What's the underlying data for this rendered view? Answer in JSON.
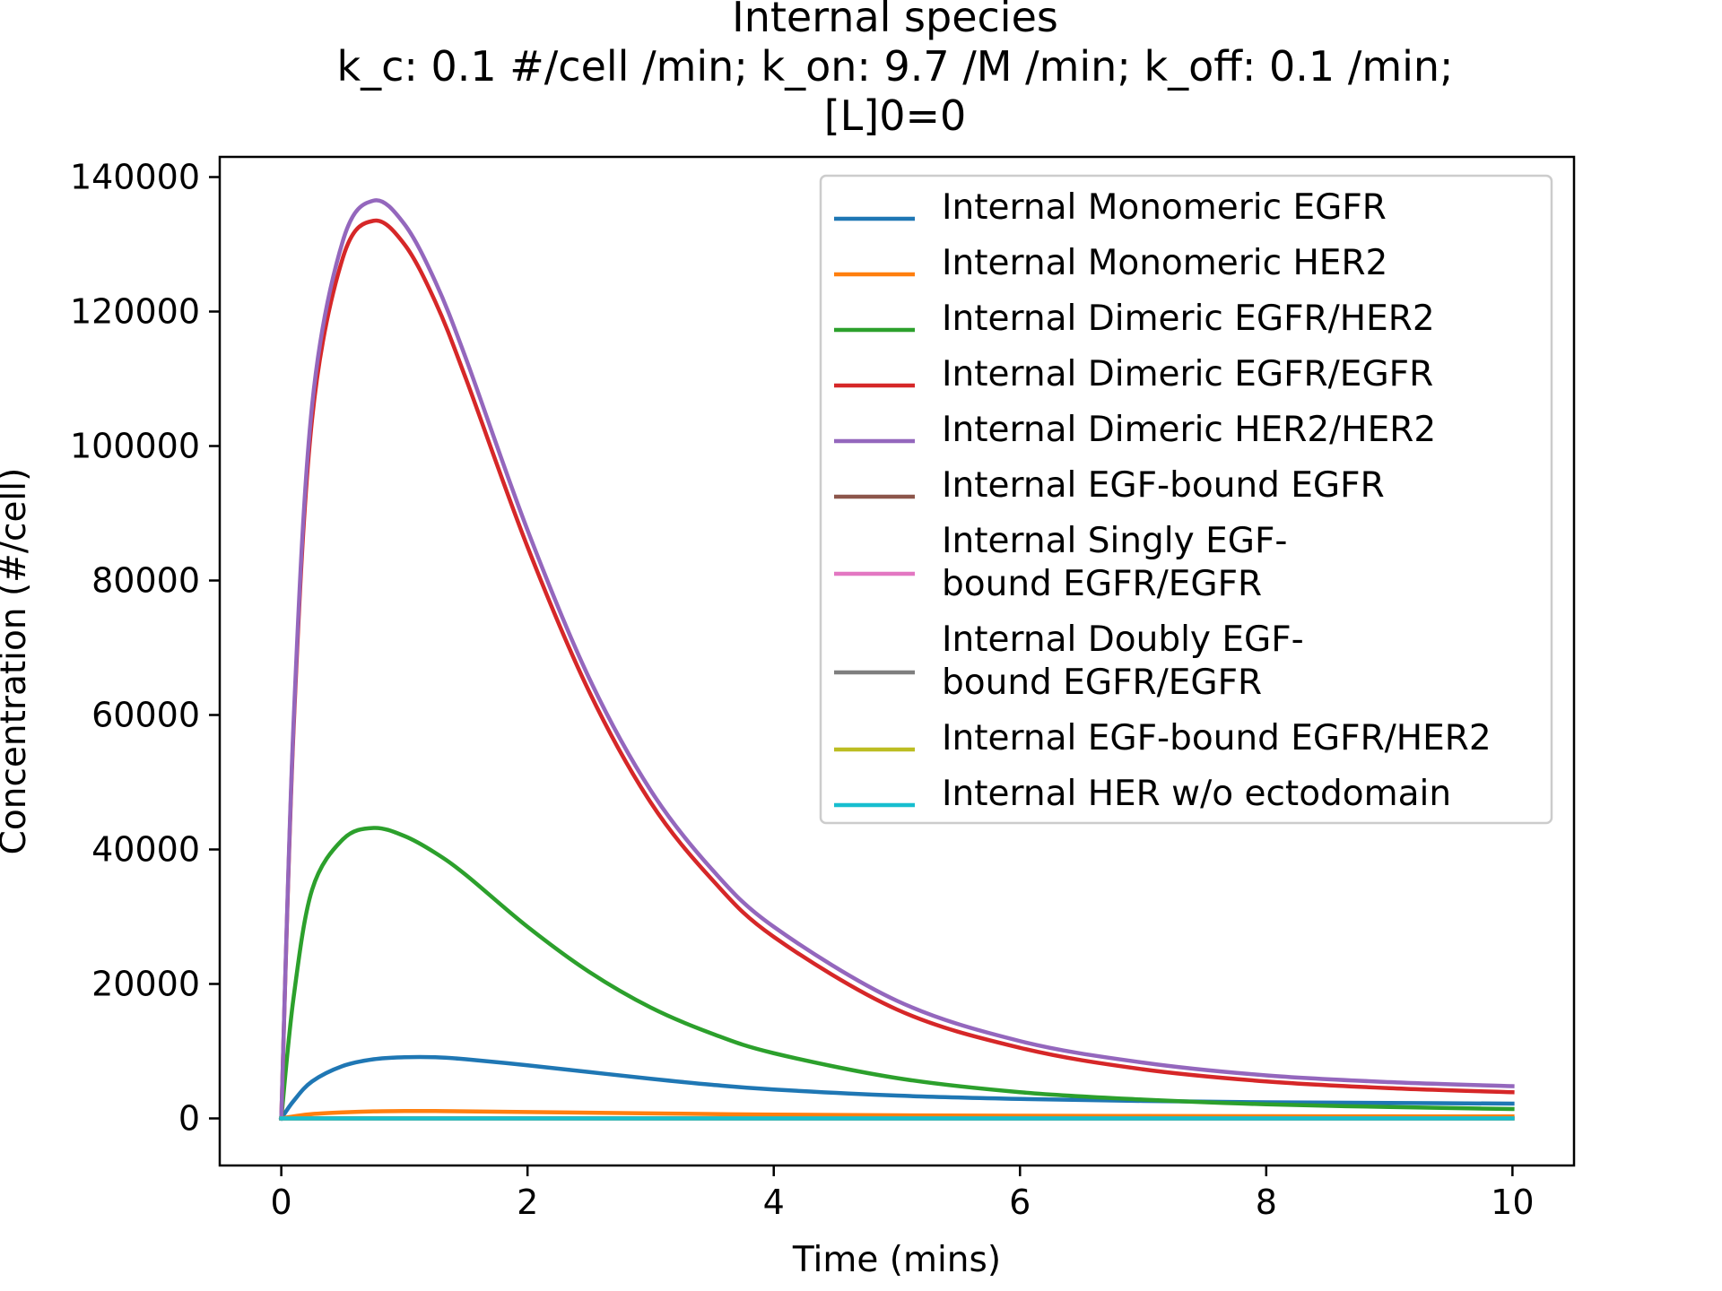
{
  "chart_data": {
    "type": "line",
    "title_lines": [
      "Internal species",
      "k_c: 0.1 #/cell /min; k_on: 9.7 /M /min; k_off: 0.1 /min;",
      "[L]0=0"
    ],
    "xlabel": "Time (mins)",
    "ylabel": "Concentration (#/cell)",
    "xlim": [
      -0.5,
      10.5
    ],
    "ylim": [
      -7000,
      143000
    ],
    "xticks": [
      0,
      2,
      4,
      6,
      8,
      10
    ],
    "xtick_labels": [
      "0",
      "2",
      "4",
      "6",
      "8",
      "10"
    ],
    "yticks": [
      0,
      20000,
      40000,
      60000,
      80000,
      100000,
      120000,
      140000
    ],
    "ytick_labels": [
      "0",
      "20000",
      "40000",
      "60000",
      "80000",
      "100000",
      "120000",
      "140000"
    ],
    "legend_position": "top-right",
    "grid": false,
    "x": [
      0,
      0.1,
      0.25,
      0.5,
      0.75,
      1,
      1.25,
      1.5,
      2,
      2.5,
      3,
      3.5,
      4,
      5,
      6,
      7,
      8,
      9,
      10
    ],
    "series": [
      {
        "label_lines": [
          "Internal Monomeric EGFR"
        ],
        "color": "#1f77b4",
        "values": [
          0,
          2600,
          5500,
          7800,
          8800,
          9100,
          9100,
          8800,
          7900,
          6900,
          5900,
          5000,
          4300,
          3400,
          2900,
          2600,
          2400,
          2300,
          2200
        ]
      },
      {
        "label_lines": [
          "Internal Monomeric HER2"
        ],
        "color": "#ff7f0e",
        "values": [
          0,
          300,
          650,
          900,
          1050,
          1100,
          1100,
          1050,
          950,
          850,
          750,
          650,
          570,
          460,
          400,
          360,
          330,
          310,
          300
        ]
      },
      {
        "label_lines": [
          "Internal Dimeric EGFR/HER2"
        ],
        "color": "#2ca02c",
        "values": [
          0,
          18000,
          34000,
          41500,
          43200,
          42000,
          39500,
          36200,
          28500,
          21800,
          16500,
          12600,
          9700,
          6000,
          3900,
          2800,
          2100,
          1700,
          1400
        ]
      },
      {
        "label_lines": [
          "Internal Dimeric EGFR/EGFR"
        ],
        "color": "#d62728",
        "values": [
          0,
          58000,
          104000,
          128000,
          133500,
          130000,
          121500,
          110000,
          85000,
          63500,
          47000,
          35500,
          27000,
          16200,
          10500,
          7300,
          5500,
          4500,
          3900
        ]
      },
      {
        "label_lines": [
          "Internal Dimeric HER2/HER2"
        ],
        "color": "#9467bd",
        "values": [
          0,
          59000,
          106000,
          130500,
          136500,
          133000,
          124500,
          113000,
          87500,
          65500,
          48800,
          37000,
          28500,
          17500,
          11500,
          8300,
          6400,
          5400,
          4800
        ]
      },
      {
        "label_lines": [
          "Internal EGF-bound EGFR"
        ],
        "color": "#8c564b",
        "values": [
          0,
          0,
          0,
          0,
          0,
          0,
          0,
          0,
          0,
          0,
          0,
          0,
          0,
          0,
          0,
          0,
          0,
          0,
          0
        ]
      },
      {
        "label_lines": [
          "Internal Singly EGF-",
          "bound EGFR/EGFR"
        ],
        "color": "#e377c2",
        "values": [
          0,
          0,
          0,
          0,
          0,
          0,
          0,
          0,
          0,
          0,
          0,
          0,
          0,
          0,
          0,
          0,
          0,
          0,
          0
        ]
      },
      {
        "label_lines": [
          "Internal Doubly EGF-",
          "bound EGFR/EGFR"
        ],
        "color": "#7f7f7f",
        "values": [
          0,
          0,
          0,
          0,
          0,
          0,
          0,
          0,
          0,
          0,
          0,
          0,
          0,
          0,
          0,
          0,
          0,
          0,
          0
        ]
      },
      {
        "label_lines": [
          "Internal EGF-bound EGFR/HER2"
        ],
        "color": "#bcbd22",
        "values": [
          0,
          0,
          0,
          0,
          0,
          0,
          0,
          0,
          0,
          0,
          0,
          0,
          0,
          0,
          0,
          0,
          0,
          0,
          0
        ]
      },
      {
        "label_lines": [
          "Internal HER w/o ectodomain"
        ],
        "color": "#17becf",
        "values": [
          0,
          0,
          0,
          0,
          0,
          0,
          0,
          0,
          0,
          0,
          0,
          0,
          0,
          0,
          0,
          0,
          0,
          0,
          0
        ]
      }
    ]
  }
}
